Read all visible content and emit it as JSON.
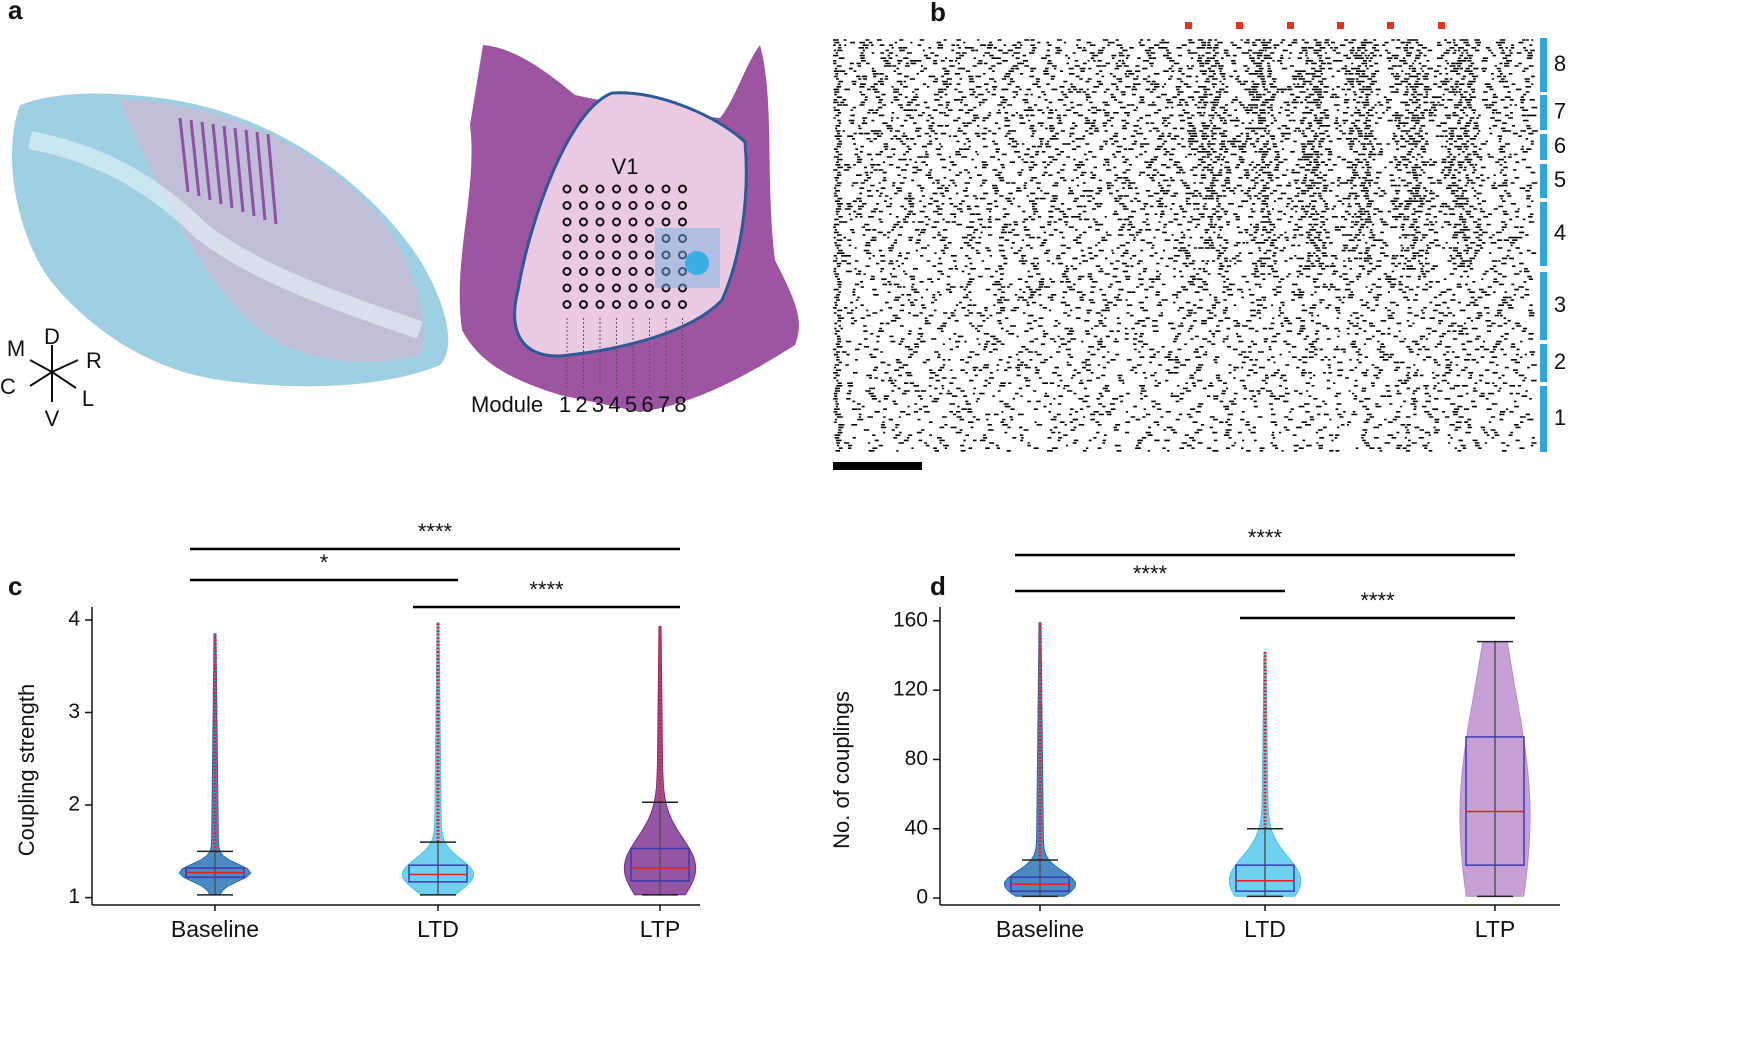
{
  "panel_labels": [
    "a",
    "b",
    "c",
    "d"
  ],
  "panel_a": {
    "orientation": [
      "D",
      "M",
      "R",
      "C",
      "L",
      "V"
    ],
    "region": "V1",
    "module_label": "Module",
    "modules": [
      "1",
      "2",
      "3",
      "4",
      "5",
      "6",
      "7",
      "8"
    ]
  },
  "panel_b": {
    "modules": [
      "8",
      "7",
      "6",
      "5",
      "4",
      "3",
      "2",
      "1"
    ]
  },
  "chart_data": [
    {
      "type": "violin",
      "ylabel": "Coupling strength",
      "categories": [
        "Baseline",
        "LTD",
        "LTP"
      ],
      "colors": [
        "#1f6db5",
        "#4cc4ec",
        "#7a2b8e"
      ],
      "median": [
        1.27,
        1.25,
        1.32
      ],
      "q1": [
        1.22,
        1.17,
        1.18
      ],
      "q3": [
        1.32,
        1.35,
        1.53
      ],
      "whisker_low": [
        1.03,
        1.03,
        1.03
      ],
      "whisker_high": [
        1.5,
        1.6,
        2.03
      ],
      "max": [
        3.85,
        3.97,
        3.93
      ],
      "ylim": [
        0.92,
        4.14
      ],
      "yticks": [
        1,
        2,
        3,
        4
      ],
      "significance": [
        {
          "pair": [
            0,
            2
          ],
          "label": "****"
        },
        {
          "pair": [
            0,
            1
          ],
          "label": "*"
        },
        {
          "pair": [
            1,
            2
          ],
          "label": "****"
        }
      ]
    },
    {
      "type": "violin",
      "ylabel": "No. of couplings",
      "categories": [
        "Baseline",
        "LTD",
        "LTP"
      ],
      "colors": [
        "#1f6db5",
        "#4cc4ec",
        "#b98acb"
      ],
      "median": [
        8,
        10,
        50
      ],
      "q1": [
        4,
        4,
        19
      ],
      "q3": [
        12,
        19,
        93
      ],
      "whisker_low": [
        1,
        1,
        1
      ],
      "whisker_high": [
        22,
        40,
        148
      ],
      "max": [
        159,
        142,
        148
      ],
      "ylim": [
        -4,
        168
      ],
      "yticks": [
        0,
        40,
        80,
        120,
        160
      ],
      "significance": [
        {
          "pair": [
            0,
            2
          ],
          "label": "****"
        },
        {
          "pair": [
            0,
            1
          ],
          "label": "****"
        },
        {
          "pair": [
            1,
            2
          ],
          "label": "****"
        }
      ]
    }
  ]
}
